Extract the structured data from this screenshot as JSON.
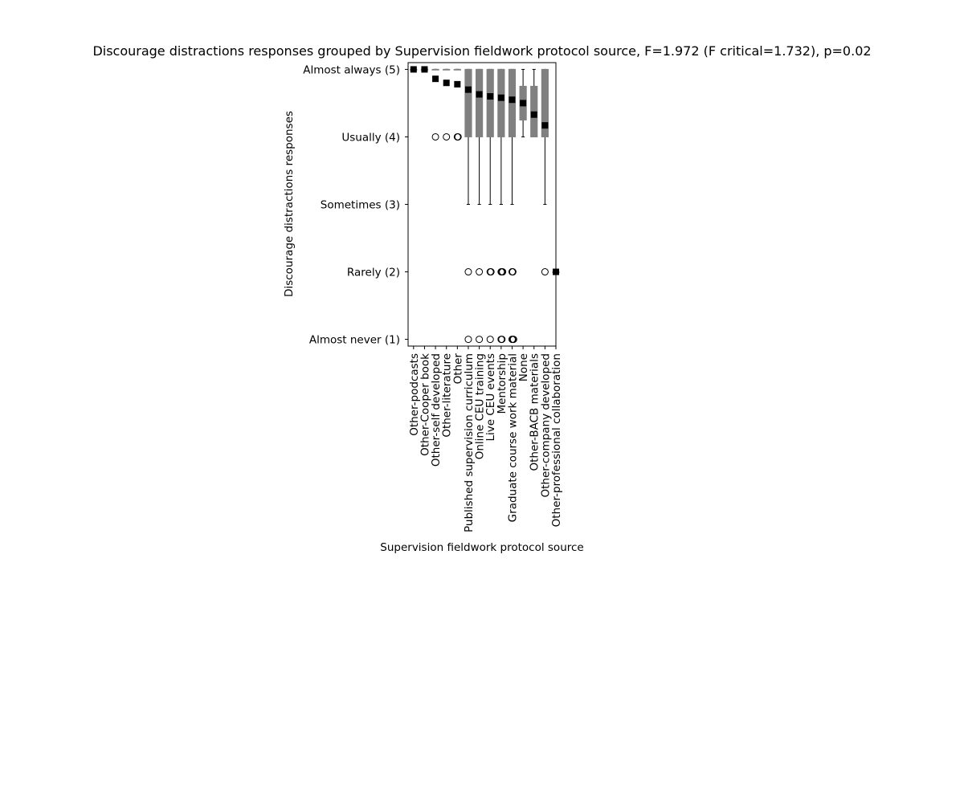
{
  "chart_data": {
    "type": "box",
    "title": "Discourage distractions responses grouped by Supervision fieldwork protocol source, F=1.972 (F critical=1.732), p=0.02",
    "xlabel": "Supervision fieldwork protocol source",
    "ylabel": "Discourage distractions responses",
    "ylim": [
      0.9,
      5.1
    ],
    "y_ticks": [
      {
        "value": 5,
        "label": "Almost always (5)"
      },
      {
        "value": 4,
        "label": "Usually (4)"
      },
      {
        "value": 3,
        "label": "Sometimes (3)"
      },
      {
        "value": 2,
        "label": "Rarely (2)"
      },
      {
        "value": 1,
        "label": "Almost never (1)"
      }
    ],
    "grid": false,
    "box_color": "#808080",
    "mean_color": "#000000",
    "groups": [
      {
        "category": "Other-podcasts",
        "q1": 5,
        "median": 5,
        "q3": 5,
        "whisker_low": 5,
        "whisker_high": 5,
        "mean": 5.0,
        "outliers": []
      },
      {
        "category": "Other-Cooper book",
        "q1": 5,
        "median": 5,
        "q3": 5,
        "whisker_low": 5,
        "whisker_high": 5,
        "mean": 5.0,
        "outliers": []
      },
      {
        "category": "Other-self developed",
        "q1": 5,
        "median": 5,
        "q3": 5,
        "whisker_low": 5,
        "whisker_high": 5,
        "mean": 4.86,
        "outliers": [
          4
        ]
      },
      {
        "category": "Other-literature",
        "q1": 5,
        "median": 5,
        "q3": 5,
        "whisker_low": 5,
        "whisker_high": 5,
        "mean": 4.8,
        "outliers": [
          4
        ]
      },
      {
        "category": "Other",
        "q1": 5,
        "median": 5,
        "q3": 5,
        "whisker_low": 5,
        "whisker_high": 5,
        "mean": 4.78,
        "outliers": [
          4,
          4
        ]
      },
      {
        "category": "Published supervision curriculum",
        "q1": 4,
        "median": 5,
        "q3": 5,
        "whisker_low": 3,
        "whisker_high": 5,
        "mean": 4.7,
        "outliers": [
          2,
          1
        ]
      },
      {
        "category": "Online CEU training",
        "q1": 4,
        "median": 5,
        "q3": 5,
        "whisker_low": 3,
        "whisker_high": 5,
        "mean": 4.63,
        "outliers": [
          2,
          1
        ]
      },
      {
        "category": "Live CEU events",
        "q1": 4,
        "median": 5,
        "q3": 5,
        "whisker_low": 3,
        "whisker_high": 5,
        "mean": 4.6,
        "outliers": [
          2,
          2,
          1
        ]
      },
      {
        "category": "Mentorship",
        "q1": 4,
        "median": 5,
        "q3": 5,
        "whisker_low": 3,
        "whisker_high": 5,
        "mean": 4.58,
        "outliers": [
          2,
          2,
          2,
          1,
          1
        ]
      },
      {
        "category": "Graduate course work material",
        "q1": 4,
        "median": 5,
        "q3": 5,
        "whisker_low": 3,
        "whisker_high": 5,
        "mean": 4.55,
        "outliers": [
          2,
          2,
          1,
          1,
          1
        ]
      },
      {
        "category": "None",
        "q1": 4.25,
        "median": 4.5,
        "q3": 4.75,
        "whisker_low": 4,
        "whisker_high": 5,
        "mean": 4.5,
        "outliers": []
      },
      {
        "category": "Other-BACB materials",
        "q1": 4,
        "median": 4,
        "q3": 4.75,
        "whisker_low": 4,
        "whisker_high": 5,
        "mean": 4.33,
        "outliers": []
      },
      {
        "category": "Other-company developed",
        "q1": 4,
        "median": 4,
        "q3": 5,
        "whisker_low": 3,
        "whisker_high": 5,
        "mean": 4.17,
        "outliers": [
          2
        ]
      },
      {
        "category": "Other-professional collaboration",
        "q1": 2,
        "median": 2,
        "q3": 2,
        "whisker_low": 2,
        "whisker_high": 2,
        "mean": 2.0,
        "outliers": []
      }
    ]
  }
}
